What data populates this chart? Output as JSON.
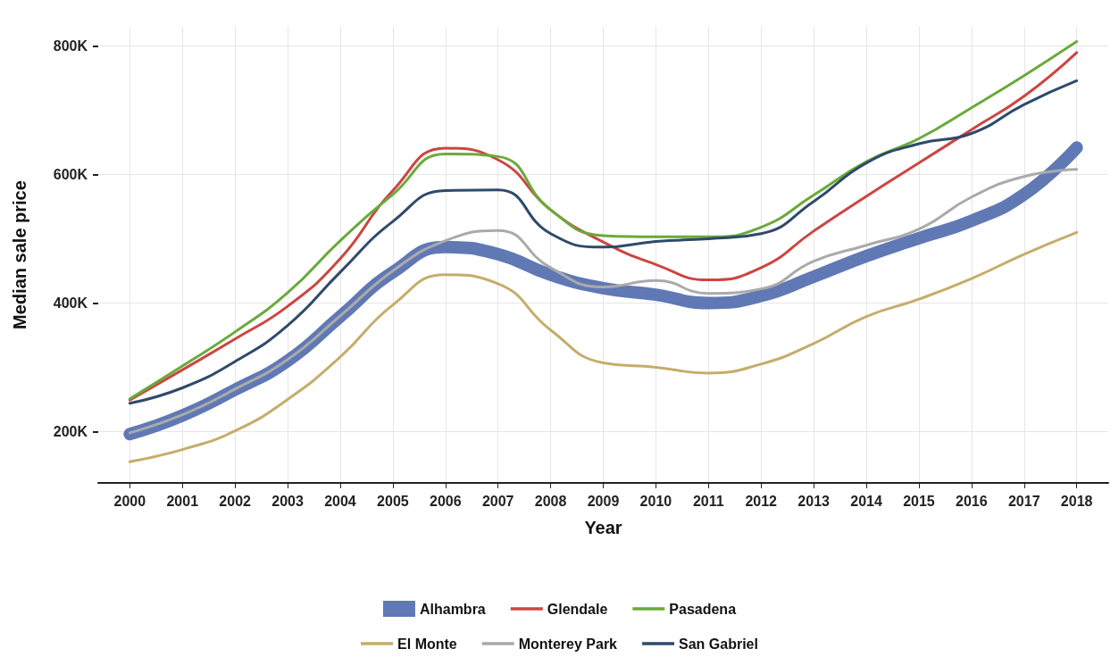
{
  "chart_data": {
    "type": "line",
    "xlabel": "Year",
    "ylabel": "Median sale price",
    "x": [
      2000,
      2001,
      2002,
      2003,
      2004,
      2005,
      2006,
      2007,
      2008,
      2009,
      2010,
      2011,
      2012,
      2013,
      2014,
      2015,
      2016,
      2017,
      2018
    ],
    "xlim": [
      1999.4,
      2018.6
    ],
    "xticks": [
      2000,
      2001,
      2002,
      2003,
      2004,
      2005,
      2006,
      2007,
      2008,
      2009,
      2010,
      2011,
      2012,
      2013,
      2014,
      2015,
      2016,
      2017,
      2018
    ],
    "ylim": [
      120000,
      830000
    ],
    "yticks": [
      {
        "value": 200000,
        "label": "200K"
      },
      {
        "value": 400000,
        "label": "400K"
      },
      {
        "value": 600000,
        "label": "600K"
      },
      {
        "value": 800000,
        "label": "800K"
      }
    ],
    "grid": true,
    "legend": "bottom",
    "marker": "none",
    "line_style": "solid",
    "series": [
      {
        "name": "Alhambra",
        "color": "#6079b5",
        "values": [
          196000,
          225000,
          265000,
          310000,
          379000,
          448000,
          487000,
          476000,
          444000,
          423000,
          413000,
          400000,
          411000,
          441000,
          473000,
          501000,
          528000,
          569000,
          642000
        ]
      },
      {
        "name": "El Monte",
        "color": "#c5ad6a",
        "values": [
          153000,
          172000,
          201000,
          250000,
          316000,
          397000,
          444000,
          430000,
          358000,
          307000,
          300000,
          291000,
          305000,
          337000,
          379000,
          406000,
          438000,
          476000,
          510000
        ]
      },
      {
        "name": "Glendale",
        "color": "#cc4541",
        "values": [
          249000,
          296000,
          344000,
          395000,
          469000,
          575000,
          641000,
          623000,
          545000,
          495000,
          460000,
          436000,
          455000,
          512000,
          566000,
          618000,
          670000,
          722000,
          790000
        ]
      },
      {
        "name": "Monterey Park",
        "color": "#aaaaaa",
        "values": [
          198000,
          226000,
          266000,
          312000,
          380000,
          450000,
          497000,
          513000,
          455000,
          425000,
          435000,
          415000,
          422000,
          465000,
          490000,
          515000,
          565000,
          597000,
          608000
        ]
      },
      {
        "name": "Pasadena",
        "color": "#6aaa3a",
        "values": [
          251000,
          302000,
          355000,
          416000,
          497000,
          569000,
          632000,
          628000,
          545000,
          505000,
          503000,
          503000,
          518000,
          568000,
          620000,
          656000,
          704000,
          754000,
          807000
        ]
      },
      {
        "name": "San Gabriel",
        "color": "#2e4a6b",
        "values": [
          244000,
          268000,
          309000,
          365000,
          448000,
          527000,
          575000,
          576000,
          508000,
          487000,
          496000,
          500000,
          508000,
          558000,
          618000,
          648000,
          664000,
          709000,
          746000
        ]
      }
    ]
  }
}
